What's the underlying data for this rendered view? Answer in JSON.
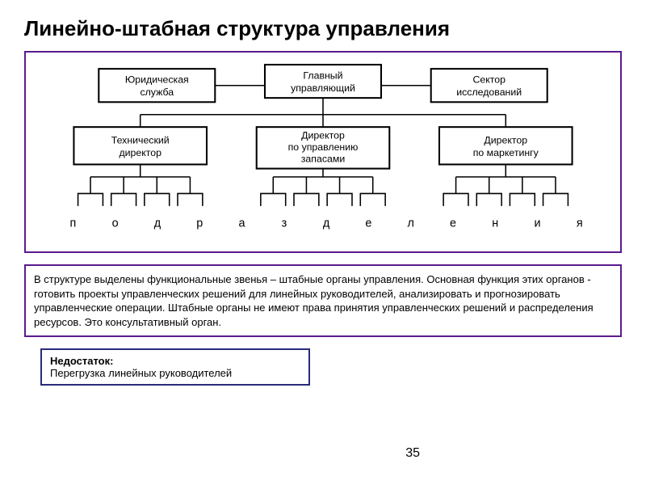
{
  "title": "Линейно-штабная структура управления",
  "diagram": {
    "type": "tree",
    "border_color": "#5b1a8e",
    "background_color": "#ffffff",
    "node_stroke": "#000000",
    "node_fill": "#ffffff",
    "node_stroke_width": 2,
    "connector_stroke": "#000000",
    "connector_width": 1.5,
    "font_size": 12,
    "nodes": {
      "top_left": {
        "label1": "Юридическая",
        "label2": "служба"
      },
      "top_center": {
        "label1": "Главный",
        "label2": "управляющий"
      },
      "top_right": {
        "label1": "Сектор",
        "label2": "исследований"
      },
      "mid_left": {
        "label1": "Технический",
        "label2": "директор"
      },
      "mid_center": {
        "label1": "Директор",
        "label2": "по управлению",
        "label3": "запасами"
      },
      "mid_right": {
        "label1": "Директор",
        "label2": "по маркетингу"
      }
    },
    "bottom_word": "подразделения"
  },
  "description": "В структуре выделены функциональные звенья – штабные органы управления. Основная функция этих органов - готовить проекты управленческих решений для линейных руководителей, анализировать и прогнозировать управленческие операции. Штабные органы не имеют права принятия управленческих решений и распределения ресурсов. Это консультативный орган.",
  "drawback": {
    "label": "Недостаток:",
    "text": "Перегрузка линейных руководителей",
    "border_color": "#2a2a7a"
  },
  "page_number": "35"
}
